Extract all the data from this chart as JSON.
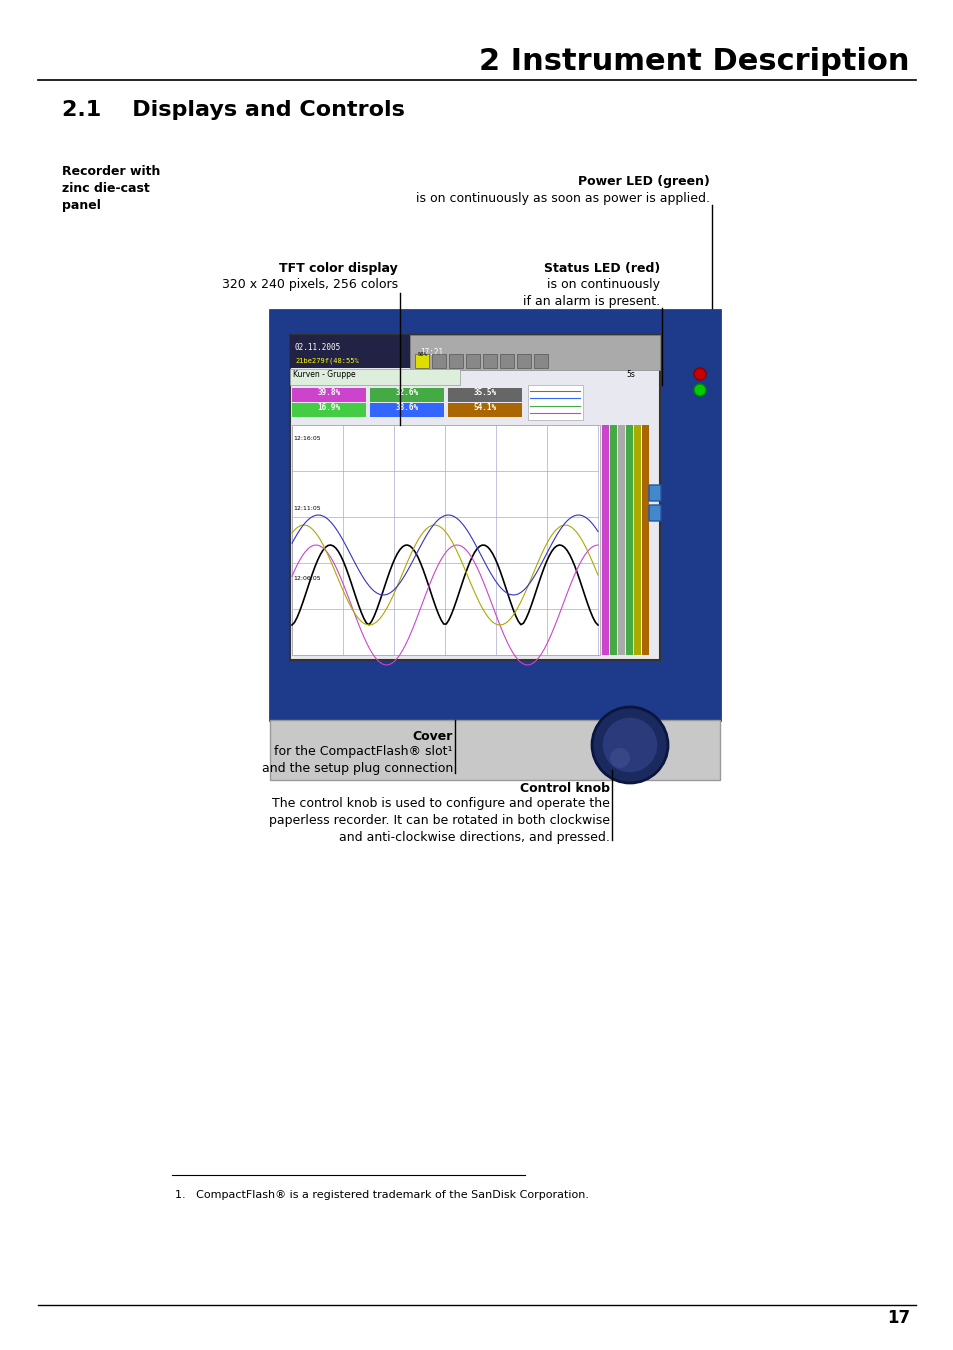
{
  "page_title": "2 Instrument Description",
  "section_title": "2.1    Displays and Controls",
  "bg_color": "#ffffff",
  "title_color": "#000000",
  "recorder_label": "Recorder with\nzinc die-cast\npanel",
  "power_led_label": "Power LED (green)",
  "power_led_desc": "is on continuously as soon as power is applied.",
  "tft_label": "TFT color display",
  "tft_desc": "320 x 240 pixels, 256 colors",
  "status_led_label": "Status LED (red)",
  "status_led_desc": "is on continuously\nif an alarm is present.",
  "cover_label": "Cover",
  "cover_desc": "for the CompactFlash® slot¹\nand the setup plug connection",
  "knob_label": "Control knob",
  "knob_desc": "The control knob is used to configure and operate the\npaperless recorder. It can be rotated in both clockwise\nand anti-clockwise directions, and pressed.",
  "footnote": "1.   CompactFlash® is a registered trademark of the SanDisk Corporation.",
  "page_number": "17",
  "device_image_placeholder": true
}
